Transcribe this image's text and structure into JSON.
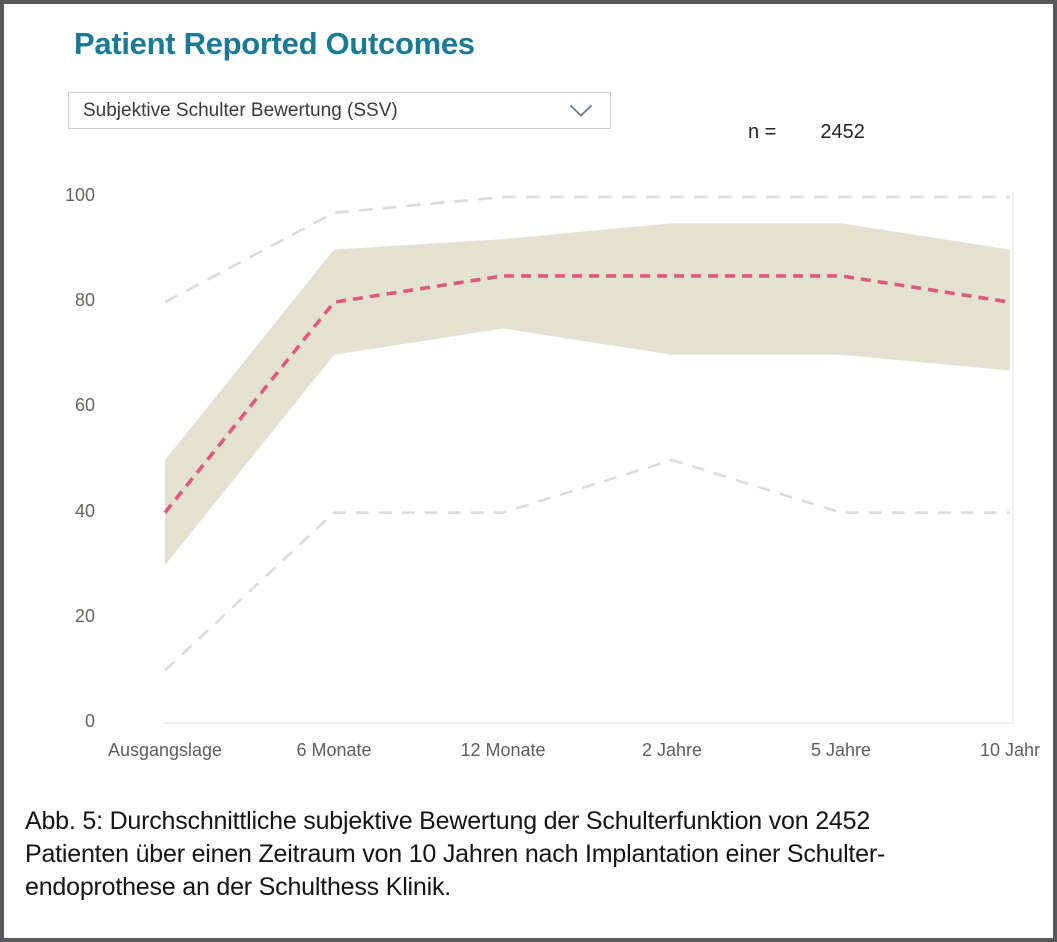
{
  "header": {
    "title": "Patient Reported Outcomes"
  },
  "filter": {
    "selected": "Subjektive Schulter Bewertung (SSV)",
    "chevron_icon": "chevron-down"
  },
  "sample": {
    "label": "n =",
    "value": "2452"
  },
  "chart_data": {
    "type": "line",
    "title": "Patient Reported Outcomes",
    "x_categories": [
      "Ausgangslage",
      "6 Monate",
      "12 Monate",
      "2 Jahre",
      "5 Jahre",
      "10 Jahr"
    ],
    "y_ticks": [
      0,
      20,
      40,
      60,
      80,
      100
    ],
    "ylim": [
      0,
      100
    ],
    "grid": false,
    "legend": "none",
    "band": {
      "role": "percentile-band",
      "color": "#E3E2D2",
      "upper": [
        50,
        90,
        92,
        95,
        95,
        90
      ],
      "lower": [
        30,
        70,
        75,
        70,
        70,
        67
      ]
    },
    "series": [
      {
        "role": "upper-percentile-line",
        "style": "dashed",
        "color": "#DBDBDB",
        "width": 2.6,
        "dash": "14 10",
        "values": [
          80,
          97,
          100,
          100,
          100,
          100
        ]
      },
      {
        "role": "lower-percentile-line",
        "style": "dashed",
        "color": "#DBDBDB",
        "width": 2.6,
        "dash": "13 10",
        "values": [
          10,
          40,
          40,
          50,
          40,
          40
        ]
      },
      {
        "role": "median-line",
        "style": "dashed",
        "color": "#DD5A78",
        "width": 3.6,
        "dash": "10 7",
        "values": [
          40,
          80,
          85,
          85,
          85,
          80
        ]
      }
    ],
    "axis_line_color": "#E5E5E5"
  },
  "caption": {
    "lines": [
      "Abb. 5: Durchschnittliche subjektive Bewertung der Schulterfunktion von 2452",
      "Patienten über einen Zeitraum von 10 Jahren nach Implantation einer Schulter-",
      "endoprothese an der Schulthess Klinik."
    ]
  },
  "colors": {
    "title": "#1B7A93",
    "median": "#DD5A78",
    "band": "#E3E2D2",
    "percentile": "#DBDBDB",
    "axis_text": "#605E5C",
    "frame": "#59595B"
  }
}
